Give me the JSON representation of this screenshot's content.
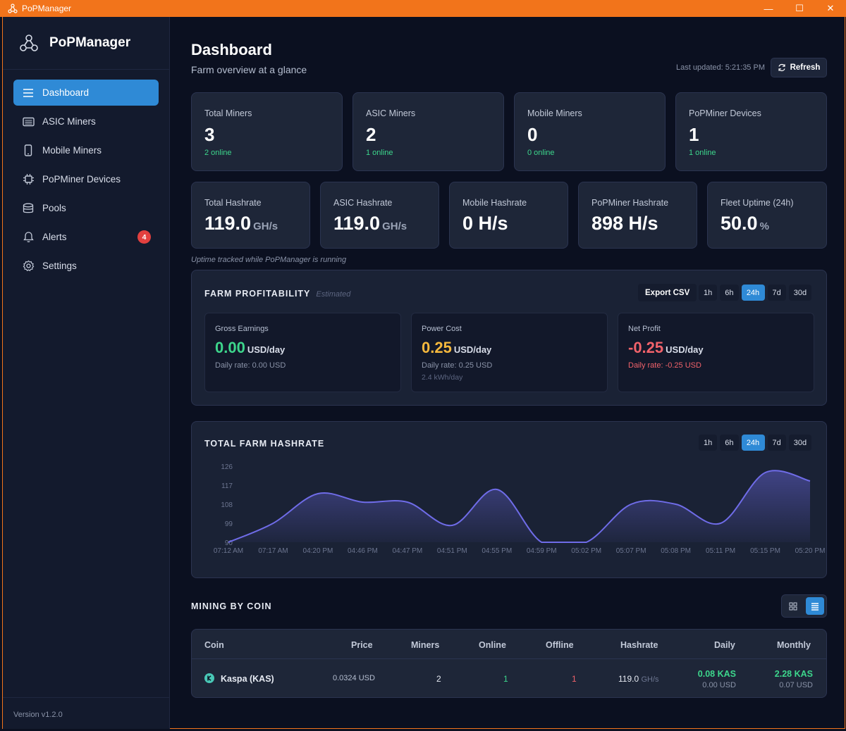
{
  "window": {
    "title": "PoPManager",
    "controls": {
      "minimize": "—",
      "maximize": "☐",
      "close": "✕"
    }
  },
  "sidebar": {
    "brand": "PoPManager",
    "items": [
      {
        "label": "Dashboard",
        "icon": "menu-icon",
        "active": true
      },
      {
        "label": "ASIC Miners",
        "icon": "server-icon"
      },
      {
        "label": "Mobile Miners",
        "icon": "phone-icon"
      },
      {
        "label": "PoPMiner Devices",
        "icon": "chip-icon"
      },
      {
        "label": "Pools",
        "icon": "database-icon"
      },
      {
        "label": "Alerts",
        "icon": "bell-icon",
        "badge": "4"
      },
      {
        "label": "Settings",
        "icon": "gear-icon"
      }
    ],
    "version": "Version v1.2.0"
  },
  "header": {
    "title": "Dashboard",
    "subtitle": "Farm overview at a glance",
    "last_updated": "Last updated: 5:21:35 PM",
    "refresh_label": "Refresh"
  },
  "stats": [
    {
      "label": "Total Miners",
      "value": "3",
      "sub": "2 online"
    },
    {
      "label": "ASIC Miners",
      "value": "2",
      "sub": "1 online"
    },
    {
      "label": "Mobile Miners",
      "value": "0",
      "sub": "0 online"
    },
    {
      "label": "PoPMiner Devices",
      "value": "1",
      "sub": "1 online"
    }
  ],
  "hashrates": [
    {
      "label": "Total Hashrate",
      "value": "119.0",
      "unit": "GH/s"
    },
    {
      "label": "ASIC Hashrate",
      "value": "119.0",
      "unit": "GH/s"
    },
    {
      "label": "Mobile Hashrate",
      "value": "0 H/s",
      "unit": ""
    },
    {
      "label": "PoPMiner Hashrate",
      "value": "898 H/s",
      "unit": ""
    },
    {
      "label": "Fleet Uptime (24h)",
      "value": "50.0",
      "unit": "%"
    }
  ],
  "uptime_note": "Uptime tracked while PoPManager is running",
  "profitability": {
    "title": "FARM PROFITABILITY",
    "tag": "Estimated",
    "export_label": "Export CSV",
    "ranges": [
      "1h",
      "6h",
      "24h",
      "7d",
      "30d"
    ],
    "active_range": "24h",
    "boxes": [
      {
        "label": "Gross Earnings",
        "value": "0.00",
        "unit": "USD/day",
        "rate": "Daily rate: 0.00 USD",
        "extra": "",
        "color": "#3dd68c",
        "rate_color": "#8a93a8"
      },
      {
        "label": "Power Cost",
        "value": "0.25",
        "unit": "USD/day",
        "rate": "Daily rate: 0.25 USD",
        "extra": "2.4 kWh/day",
        "color": "#f5b83d",
        "rate_color": "#8a93a8"
      },
      {
        "label": "Net Profit",
        "value": "-0.25",
        "unit": "USD/day",
        "rate": "Daily rate: -0.25 USD",
        "extra": "",
        "color": "#f0626a",
        "rate_color": "#f0626a"
      }
    ]
  },
  "hashrate_chart": {
    "title": "TOTAL FARM HASHRATE",
    "ranges": [
      "1h",
      "6h",
      "24h",
      "7d",
      "30d"
    ],
    "active_range": "24h"
  },
  "chart_data": {
    "type": "area",
    "x": [
      "07:12 AM",
      "07:17 AM",
      "04:20 PM",
      "04:46 PM",
      "04:47 PM",
      "04:51 PM",
      "04:55 PM",
      "04:59 PM",
      "05:02 PM",
      "05:07 PM",
      "05:08 PM",
      "05:11 PM",
      "05:15 PM",
      "05:20 PM"
    ],
    "values": [
      90,
      99,
      113,
      109,
      109,
      98,
      115,
      90,
      90,
      108,
      108,
      99,
      123,
      119
    ],
    "yticks": [
      90,
      99,
      108,
      117,
      126
    ],
    "ylim": [
      90,
      126
    ],
    "line_color": "#6f6ce8",
    "grid": false
  },
  "coins": {
    "title": "MINING BY COIN",
    "columns": [
      "Coin",
      "Price",
      "Miners",
      "Online",
      "Offline",
      "Hashrate",
      "Daily",
      "Monthly"
    ],
    "rows": [
      {
        "coin": "Kaspa (KAS)",
        "price": "0.0324 USD",
        "miners": "2",
        "online": "1",
        "offline": "1",
        "hashrate": "119.0",
        "hashrate_unit": "GH/s",
        "daily": "0.08 KAS",
        "daily_usd": "0.00 USD",
        "monthly": "2.28 KAS",
        "monthly_usd": "0.07 USD"
      }
    ]
  }
}
